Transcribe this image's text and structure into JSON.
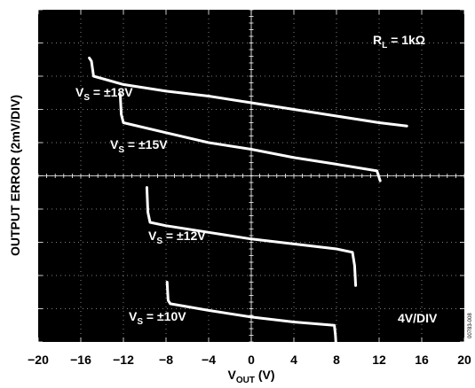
{
  "chart_data": {
    "type": "line",
    "xlabel": "V",
    "xlabel_sub": "OUT",
    "xlabel_unit": " (V)",
    "ylabel": "OUTPUT ERROR (2mV/DIV)",
    "xlim": [
      -20,
      20
    ],
    "ylim": [
      -5,
      5
    ],
    "grid": true,
    "x_ticks": [
      "−20",
      "−16",
      "−12",
      "−8",
      "−4",
      "0",
      "4",
      "8",
      "12",
      "16",
      "20"
    ],
    "annotations": {
      "load": "R",
      "load_sub": "L",
      "load_value": " = 1kΩ",
      "scale": "4V/DIV",
      "code": "00783-008"
    },
    "series": [
      {
        "name": "V_S = ±18V",
        "label_main": "V",
        "label_sub": "S",
        "label_value": " = ±18V",
        "x": [
          -15.2,
          -15.0,
          -14.8,
          -12,
          -8,
          -4,
          0,
          4,
          8,
          12,
          14.6
        ],
        "y": [
          3.55,
          3.45,
          3.0,
          2.75,
          2.55,
          2.4,
          2.2,
          2.0,
          1.8,
          1.6,
          1.5
        ]
      },
      {
        "name": "V_S = ±15V",
        "label_main": "V",
        "label_sub": "S",
        "label_value": " = ±15V",
        "x": [
          -12.3,
          -12.2,
          -12.0,
          -8,
          -4,
          0,
          4,
          8,
          11.8,
          12.0,
          12.1
        ],
        "y": [
          2.45,
          1.85,
          1.6,
          1.3,
          1.0,
          0.8,
          0.55,
          0.35,
          0.15,
          -0.05,
          -0.15
        ]
      },
      {
        "name": "V_S = ±12V",
        "label_main": "V",
        "label_sub": "S",
        "label_value": " = ±12V",
        "x": [
          -9.8,
          -9.7,
          -9.5,
          -8,
          -4,
          0,
          4,
          8,
          9.5,
          9.7,
          9.8
        ],
        "y": [
          -0.35,
          -1.1,
          -1.4,
          -1.5,
          -1.7,
          -1.9,
          -2.05,
          -2.2,
          -2.3,
          -2.7,
          -3.3
        ]
      },
      {
        "name": "V_S = ±10V",
        "label_main": "V",
        "label_sub": "S",
        "label_value": " = ±10V",
        "x": [
          -7.9,
          -7.8,
          -7.6,
          -4,
          0,
          4,
          7.8,
          7.9,
          8.0
        ],
        "y": [
          -3.2,
          -3.75,
          -3.85,
          -4.05,
          -4.25,
          -4.4,
          -4.5,
          -4.8,
          -5.3
        ]
      }
    ]
  }
}
